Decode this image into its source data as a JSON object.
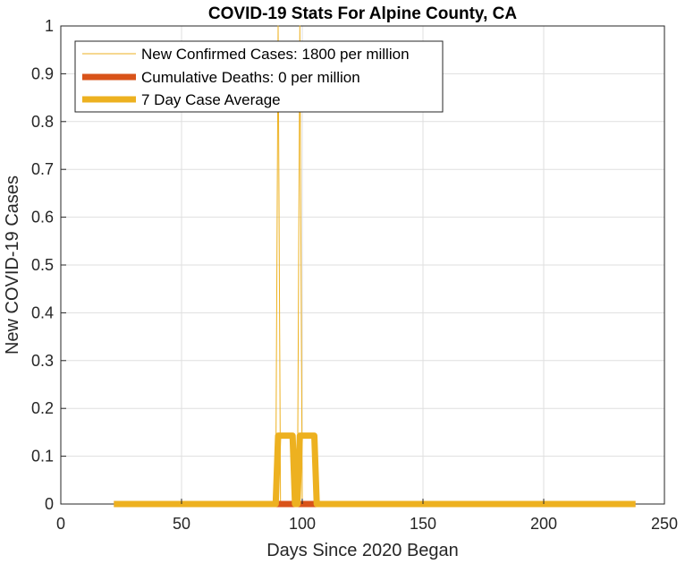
{
  "chart_data": {
    "type": "line",
    "title": "COVID-19 Stats For Alpine County, CA",
    "xlabel": "Days Since 2020 Began",
    "ylabel": "New COVID-19 Cases",
    "xlim": [
      0,
      250
    ],
    "ylim": [
      0,
      1
    ],
    "xticks": [
      "0",
      "50",
      "100",
      "150",
      "200",
      "250"
    ],
    "yticks": [
      "0",
      "0.1",
      "0.2",
      "0.3",
      "0.4",
      "0.5",
      "0.6",
      "0.7",
      "0.8",
      "0.9",
      "1"
    ],
    "grid": true,
    "legend_position": "top-left",
    "series": [
      {
        "name": "New Confirmed Cases: 1800 per million",
        "color": "#EDB120",
        "points": [
          [
            22,
            0
          ],
          [
            89,
            0
          ],
          [
            90,
            1
          ],
          [
            91,
            0
          ],
          [
            98,
            0
          ],
          [
            99,
            1
          ],
          [
            100,
            0
          ],
          [
            238,
            0
          ]
        ]
      },
      {
        "name": "Cumulative Deaths: 0 per million",
        "color": "#D95319",
        "points": [
          [
            22,
            0
          ],
          [
            238,
            0
          ]
        ]
      },
      {
        "name": "7 Day Case Average",
        "color": "#EDB120",
        "points": [
          [
            22,
            0
          ],
          [
            89,
            0
          ],
          [
            90,
            0.143
          ],
          [
            96,
            0.143
          ],
          [
            97,
            0
          ],
          [
            98,
            0
          ],
          [
            99,
            0.143
          ],
          [
            105,
            0.143
          ],
          [
            106,
            0
          ],
          [
            238,
            0
          ]
        ]
      }
    ]
  }
}
